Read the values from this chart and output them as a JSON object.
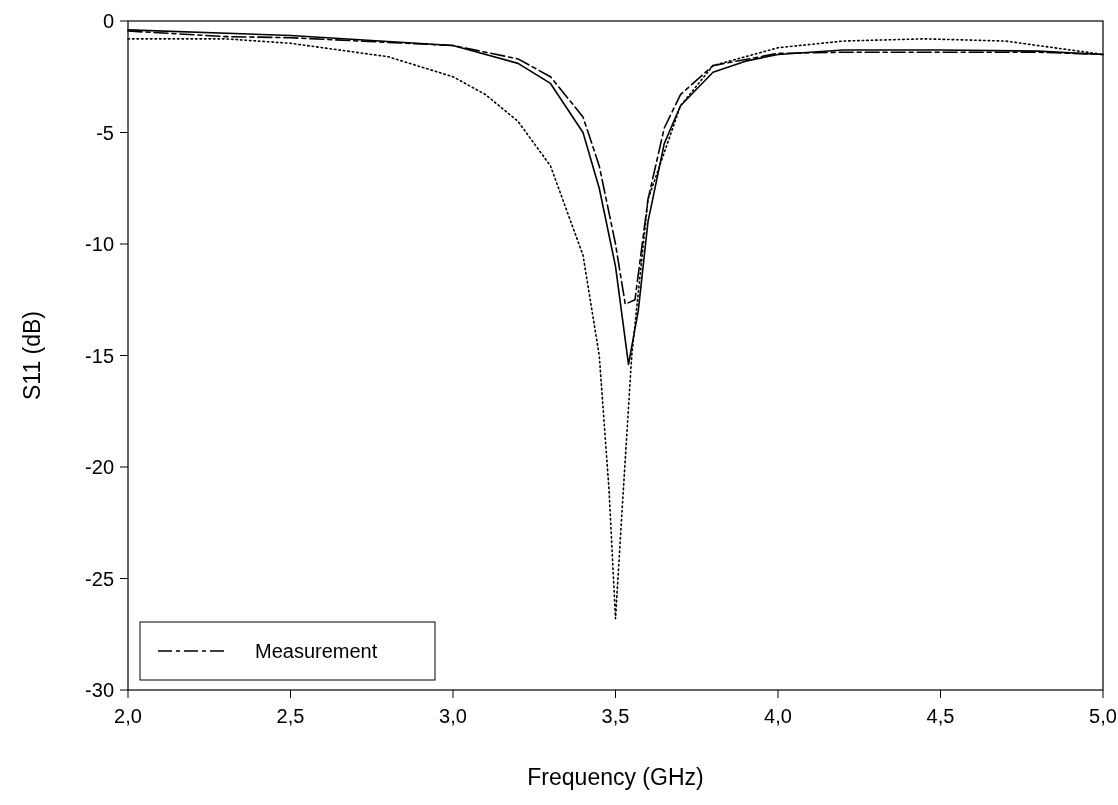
{
  "chart_data": {
    "type": "line",
    "xlabel": "Frequency (GHz)",
    "ylabel": "S11 (dB)",
    "xlim": [
      2,
      5
    ],
    "ylim": [
      -30,
      0
    ],
    "xticks": [
      {
        "value": 2,
        "label": "2,0"
      },
      {
        "value": 2.5,
        "label": "2,5"
      },
      {
        "value": 3,
        "label": "3,0"
      },
      {
        "value": 3.5,
        "label": "3,5"
      },
      {
        "value": 4,
        "label": "4,0"
      },
      {
        "value": 4.5,
        "label": "4,5"
      },
      {
        "value": 5,
        "label": "5,0"
      }
    ],
    "yticks": [
      -30,
      -25,
      -20,
      -15,
      -10,
      -5,
      0
    ],
    "grid": false,
    "legend": "bottom left",
    "series": [
      {
        "color": "#000000",
        "line_style": "solid",
        "x": [
          2.0,
          2.5,
          3.0,
          3.2,
          3.3,
          3.4,
          3.45,
          3.5,
          3.54,
          3.57,
          3.6,
          3.65,
          3.7,
          3.8,
          3.9,
          4.0,
          4.2,
          4.5,
          4.8,
          5.0
        ],
        "values": [
          -0.4,
          -0.65,
          -1.1,
          -1.9,
          -2.8,
          -5,
          -7.5,
          -11,
          -15.4,
          -13,
          -9,
          -5.5,
          -3.8,
          -2.3,
          -1.8,
          -1.5,
          -1.3,
          -1.3,
          -1.35,
          -1.5
        ]
      },
      {
        "color": "#000000",
        "line_style": "dotted",
        "x": [
          2.0,
          2.3,
          2.5,
          2.8,
          3.0,
          3.1,
          3.2,
          3.3,
          3.4,
          3.45,
          3.48,
          3.5,
          3.52,
          3.55,
          3.6,
          3.7,
          3.8,
          4.0,
          4.2,
          4.45,
          4.7,
          5.0
        ],
        "values": [
          -0.8,
          -0.8,
          -1.0,
          -1.6,
          -2.5,
          -3.3,
          -4.5,
          -6.5,
          -10.5,
          -15,
          -21,
          -26.8,
          -22,
          -15,
          -8,
          -3.8,
          -2.0,
          -1.2,
          -0.9,
          -0.8,
          -0.9,
          -1.5
        ]
      },
      {
        "name": "Measurement",
        "color": "#000000",
        "line_style": "dashed",
        "x": [
          2.0,
          2.3,
          2.5,
          3.0,
          3.2,
          3.3,
          3.4,
          3.45,
          3.5,
          3.53,
          3.56,
          3.6,
          3.65,
          3.7,
          3.8,
          4.0,
          4.2,
          4.5,
          4.8,
          5.0
        ],
        "values": [
          -0.45,
          -0.7,
          -0.75,
          -1.1,
          -1.7,
          -2.5,
          -4.3,
          -6.5,
          -10,
          -12.7,
          -12.5,
          -8,
          -4.8,
          -3.3,
          -2.0,
          -1.45,
          -1.4,
          -1.4,
          -1.4,
          -1.5
        ]
      }
    ]
  }
}
